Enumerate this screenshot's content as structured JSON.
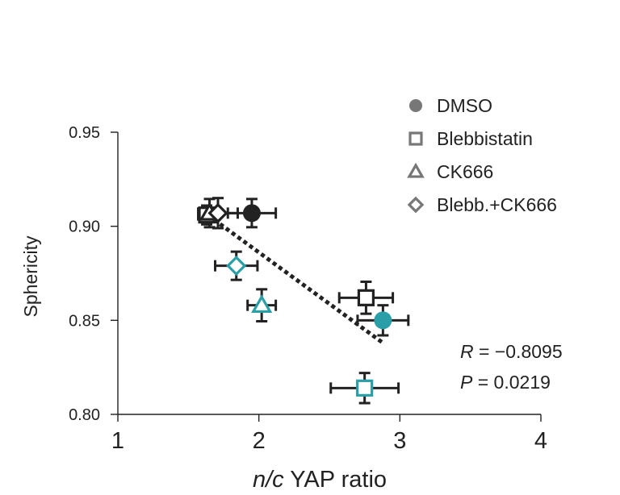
{
  "chart_data": {
    "type": "scatter",
    "xlabel": {
      "italic": "n/c",
      "rest": " YAP ratio"
    },
    "ylabel": "Sphericity",
    "xlim": [
      1,
      4
    ],
    "ylim": [
      0.8,
      0.95
    ],
    "x_ticks": [
      "1",
      "2",
      "3",
      "4"
    ],
    "y_ticks": [
      "0.80",
      "0.85",
      "0.90",
      "0.95"
    ],
    "legend_position": "top-right",
    "legend": [
      {
        "label": "DMSO",
        "marker": "circle"
      },
      {
        "label": "Blebbistatin",
        "marker": "square"
      },
      {
        "label": "CK666",
        "marker": "triangle"
      },
      {
        "label": "Blebb.+CK666",
        "marker": "diamond"
      }
    ],
    "colors": {
      "group_a": "#222222",
      "group_b": "#2a9fa8",
      "legend": "#777777"
    },
    "points": [
      {
        "treatment": "DMSO",
        "group": "a",
        "x": 1.95,
        "y": 0.907,
        "xerr": 0.17,
        "yerr": 0.0075
      },
      {
        "treatment": "Blebbistatin",
        "group": "a",
        "x": 1.63,
        "y": 0.906,
        "xerr": 0.06,
        "yerr": 0.005
      },
      {
        "treatment": "CK666",
        "group": "a",
        "x": 1.65,
        "y": 0.907,
        "xerr": 0.08,
        "yerr": 0.0075
      },
      {
        "treatment": "Blebb.+CK666",
        "group": "a",
        "x": 1.71,
        "y": 0.907,
        "xerr": 0.14,
        "yerr": 0.008
      },
      {
        "treatment": "DMSO",
        "group": "b",
        "x": 2.88,
        "y": 0.85,
        "xerr": 0.18,
        "yerr": 0.008
      },
      {
        "treatment": "Blebbistatin",
        "group": "a",
        "x": 2.76,
        "y": 0.862,
        "xerr": 0.19,
        "yerr": 0.0085
      },
      {
        "treatment": "CK666",
        "group": "b",
        "x": 2.02,
        "y": 0.858,
        "xerr": 0.1,
        "yerr": 0.0085
      },
      {
        "treatment": "Blebb.+CK666",
        "group": "b",
        "x": 1.84,
        "y": 0.879,
        "xerr": 0.15,
        "yerr": 0.0075
      },
      {
        "treatment": "Blebbistatin",
        "group": "b",
        "x": 2.75,
        "y": 0.814,
        "xerr": 0.24,
        "yerr": 0.008
      }
    ],
    "regression": {
      "x1": 1.6,
      "y1": 0.908,
      "x2": 2.88,
      "y2": 0.838
    },
    "stats": {
      "r_label": "R",
      "r_value": " = −0.8095",
      "p_label": "P",
      "p_value": " = 0.0219"
    }
  }
}
